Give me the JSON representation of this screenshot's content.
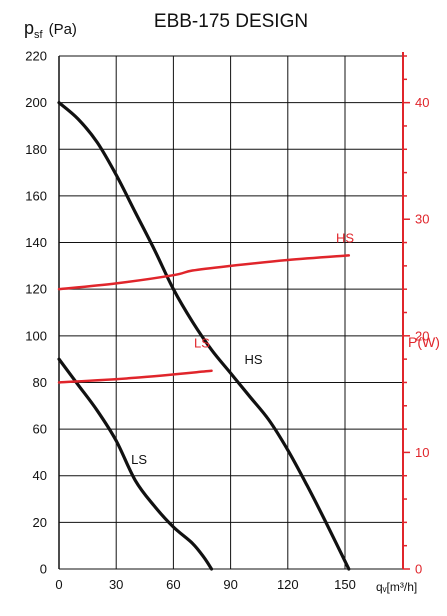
{
  "chart_data": {
    "type": "line",
    "title": "EBB-175 DESIGN",
    "ylabel": {
      "symbol": "p",
      "subscript": "sf",
      "unit": "(Pa)"
    },
    "xlabel": "qᵥ[m³/h]",
    "y2label": "P(W)",
    "xlim": [
      0,
      155
    ],
    "ylim": [
      0,
      220
    ],
    "y2lim": [
      0,
      44
    ],
    "xticks": [
      0,
      30,
      60,
      90,
      120,
      150
    ],
    "yticks": [
      0,
      20,
      40,
      60,
      80,
      100,
      120,
      140,
      160,
      180,
      200,
      220
    ],
    "y2ticks": [
      0,
      10,
      20,
      30,
      40
    ],
    "grid": true,
    "colors": {
      "pressure": "#111111",
      "power": "#e0252b",
      "grid": "#111111"
    },
    "series": [
      {
        "name": "HS",
        "axis": "pressure",
        "x": [
          0,
          10,
          20,
          30,
          40,
          50,
          60,
          70,
          80,
          90,
          100,
          110,
          120,
          130,
          140,
          152
        ],
        "y": [
          200,
          193,
          183,
          169,
          153,
          137,
          120,
          106,
          94,
          84,
          74,
          64,
          51,
          36,
          20,
          0
        ]
      },
      {
        "name": "LS",
        "axis": "pressure",
        "x": [
          0,
          10,
          20,
          30,
          40,
          50,
          60,
          70,
          76,
          80
        ],
        "y": [
          90,
          79,
          68,
          55,
          38,
          27,
          18,
          11,
          5,
          0
        ]
      },
      {
        "name": "HS",
        "axis": "power",
        "x": [
          0,
          30,
          60,
          70,
          90,
          120,
          152
        ],
        "y": [
          24,
          24.5,
          25.2,
          25.6,
          26,
          26.5,
          26.9
        ]
      },
      {
        "name": "LS",
        "axis": "power",
        "x": [
          0,
          40,
          80
        ],
        "y": [
          16,
          16.4,
          17
        ]
      }
    ],
    "annotations": [
      {
        "text": "HS",
        "axis": "pressure",
        "x": 102,
        "y": 88,
        "color": "black"
      },
      {
        "text": "LS",
        "axis": "pressure",
        "x": 42,
        "y": 45,
        "color": "black"
      },
      {
        "text": "HS",
        "axis": "power",
        "x": 150,
        "y": 28,
        "color": "red"
      },
      {
        "text": "LS",
        "axis": "power",
        "x": 75,
        "y": 19,
        "color": "red"
      }
    ]
  }
}
